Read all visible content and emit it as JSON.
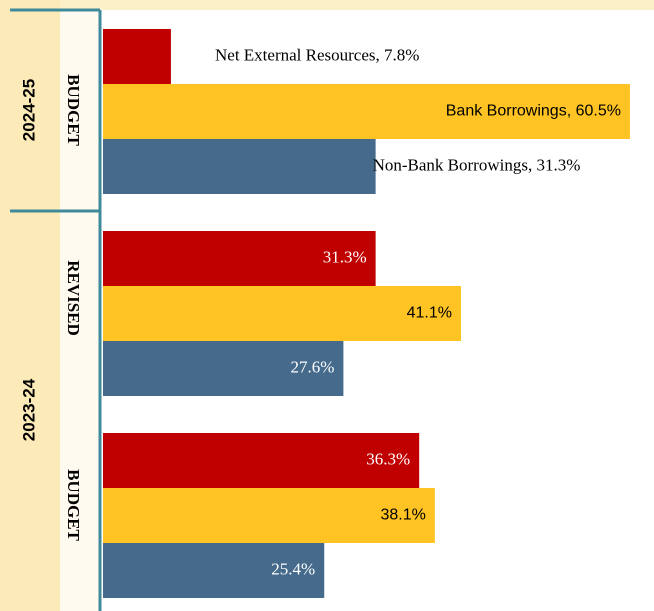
{
  "chart_data": {
    "type": "bar",
    "orientation": "horizontal",
    "category_groups": [
      "2024-25",
      "2023-24"
    ],
    "categories": [
      "BUDGET",
      "REVISED",
      "BUDGET"
    ],
    "series": [
      {
        "name": "Net External Resources",
        "color": "#c00000",
        "values": [
          7.8,
          31.3,
          36.3
        ],
        "value_labels": [
          "Net External Resources, 7.8%",
          "31.3%",
          "36.3%"
        ]
      },
      {
        "name": "Bank Borrowings",
        "color": "#ffc423",
        "values": [
          60.5,
          41.1,
          38.1
        ],
        "value_labels": [
          "Bank Borrowings, 60.5%",
          "41.1%",
          "38.1%"
        ]
      },
      {
        "name": "Non-Bank Borrowings",
        "color": "#456a8c",
        "values": [
          31.3,
          27.6,
          25.4
        ],
        "value_labels": [
          "Non-Bank Borrowings, 31.3%",
          "27.6%",
          "25.4%"
        ]
      }
    ]
  }
}
